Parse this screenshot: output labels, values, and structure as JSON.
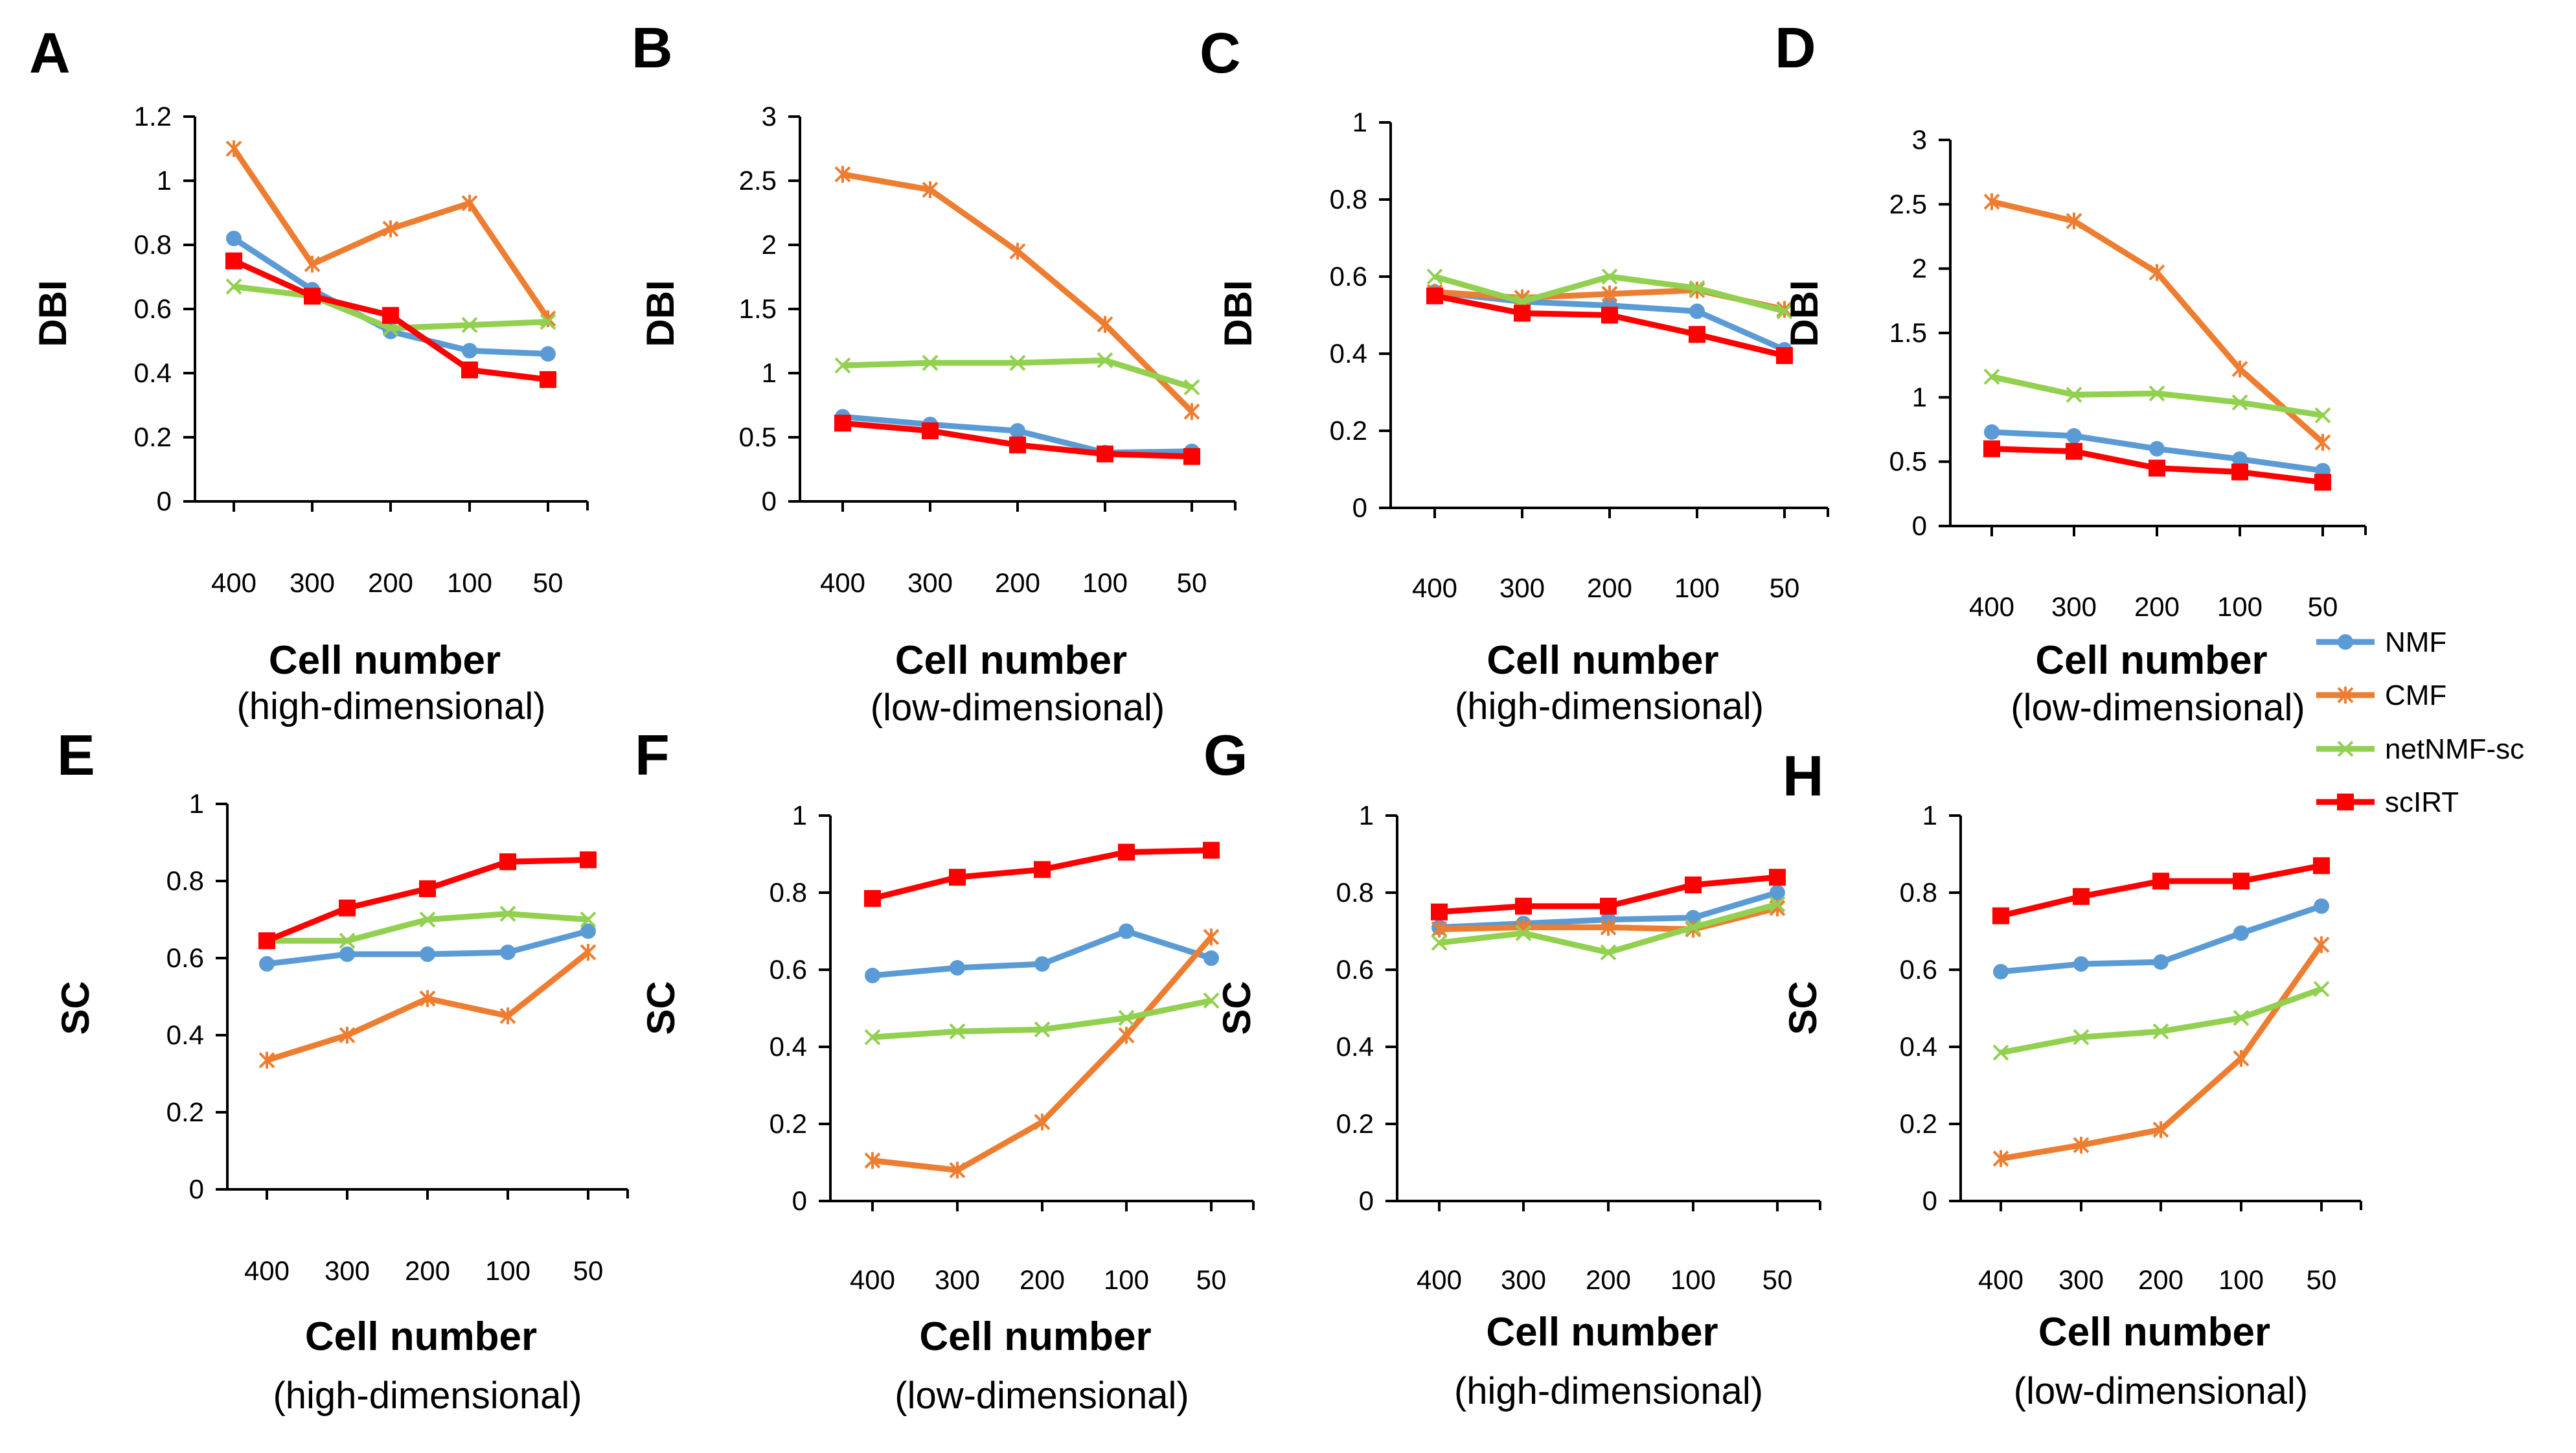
{
  "legend": {
    "placement": "right-middle",
    "entries": [
      {
        "name": "NMF",
        "color": "#5B9BD5",
        "marker": "circle"
      },
      {
        "name": "CMF",
        "color": "#ED7D31",
        "marker": "asterisk"
      },
      {
        "name": "netNMF-sc",
        "color": "#92D050",
        "marker": "x"
      },
      {
        "name": "scIRT",
        "color": "#FF0000",
        "marker": "square"
      }
    ]
  },
  "chart_data": [
    {
      "panel": "A",
      "type": "line",
      "ylabel": "DBI",
      "xlabel": "Cell number",
      "xsublabel": "(high-dimensional)",
      "categories": [
        "400",
        "300",
        "200",
        "100",
        "50"
      ],
      "ylim": [
        0,
        1.2
      ],
      "yticks": [
        "0",
        "0.2",
        "0.4",
        "0.6",
        "0.8",
        "1",
        "1.2"
      ],
      "ytick_values": [
        0,
        0.2,
        0.4,
        0.6,
        0.8,
        1.0,
        1.2
      ],
      "grid": false,
      "series": [
        {
          "name": "NMF",
          "values": [
            0.82,
            0.66,
            0.53,
            0.47,
            0.46
          ]
        },
        {
          "name": "CMF",
          "values": [
            1.1,
            0.74,
            0.85,
            0.93,
            0.57
          ]
        },
        {
          "name": "netNMF-sc",
          "values": [
            0.67,
            0.64,
            0.54,
            0.55,
            0.56
          ]
        },
        {
          "name": "scIRT",
          "values": [
            0.75,
            0.64,
            0.58,
            0.41,
            0.38
          ]
        }
      ]
    },
    {
      "panel": "B",
      "type": "line",
      "ylabel": "DBI",
      "xlabel": "Cell number",
      "xsublabel": "(low-dimensional)",
      "categories": [
        "400",
        "300",
        "200",
        "100",
        "50"
      ],
      "ylim": [
        0,
        3
      ],
      "yticks": [
        "0",
        "0.5",
        "1",
        "1.5",
        "2",
        "2.5",
        "3"
      ],
      "ytick_values": [
        0,
        0.5,
        1,
        1.5,
        2,
        2.5,
        3
      ],
      "grid": false,
      "series": [
        {
          "name": "NMF",
          "values": [
            0.66,
            0.6,
            0.55,
            0.38,
            0.39
          ]
        },
        {
          "name": "CMF",
          "values": [
            2.55,
            2.43,
            1.95,
            1.38,
            0.7
          ]
        },
        {
          "name": "netNMF-sc",
          "values": [
            1.06,
            1.08,
            1.08,
            1.1,
            0.89
          ]
        },
        {
          "name": "scIRT",
          "values": [
            0.61,
            0.55,
            0.44,
            0.37,
            0.35
          ]
        }
      ]
    },
    {
      "panel": "C",
      "type": "line",
      "ylabel": "DBI",
      "xlabel": "Cell number",
      "xsublabel": "(high-dimensional)",
      "categories": [
        "400",
        "300",
        "200",
        "100",
        "50"
      ],
      "ylim": [
        0,
        1
      ],
      "yticks": [
        "0",
        "0.2",
        "0.4",
        "0.6",
        "0.8",
        "1"
      ],
      "ytick_values": [
        0,
        0.2,
        0.4,
        0.6,
        0.8,
        1
      ],
      "grid": false,
      "series": [
        {
          "name": "NMF",
          "values": [
            0.56,
            0.535,
            0.525,
            0.51,
            0.41
          ]
        },
        {
          "name": "CMF",
          "values": [
            0.56,
            0.545,
            0.555,
            0.565,
            0.515
          ]
        },
        {
          "name": "netNMF-sc",
          "values": [
            0.6,
            0.535,
            0.6,
            0.57,
            0.51
          ]
        },
        {
          "name": "scIRT",
          "values": [
            0.55,
            0.505,
            0.5,
            0.45,
            0.395
          ]
        }
      ]
    },
    {
      "panel": "D",
      "type": "line",
      "ylabel": "DBI",
      "xlabel": "Cell number",
      "xsublabel": "(low-dimensional)",
      "categories": [
        "400",
        "300",
        "200",
        "100",
        "50"
      ],
      "ylim": [
        0,
        3
      ],
      "yticks": [
        "0",
        "0.5",
        "1",
        "1.5",
        "2",
        "2.5",
        "3"
      ],
      "ytick_values": [
        0,
        0.5,
        1,
        1.5,
        2,
        2.5,
        3
      ],
      "grid": false,
      "series": [
        {
          "name": "NMF",
          "values": [
            0.73,
            0.7,
            0.6,
            0.52,
            0.43
          ]
        },
        {
          "name": "CMF",
          "values": [
            2.52,
            2.37,
            1.97,
            1.22,
            0.65
          ]
        },
        {
          "name": "netNMF-sc",
          "values": [
            1.16,
            1.02,
            1.03,
            0.96,
            0.86
          ]
        },
        {
          "name": "scIRT",
          "values": [
            0.6,
            0.58,
            0.45,
            0.42,
            0.34
          ]
        }
      ]
    },
    {
      "panel": "E",
      "type": "line",
      "ylabel": "SC",
      "xlabel": "Cell number",
      "xsublabel": "(high-dimensional)",
      "categories": [
        "400",
        "300",
        "200",
        "100",
        "50"
      ],
      "ylim": [
        0,
        1
      ],
      "yticks": [
        "0",
        "0.2",
        "0.4",
        "0.6",
        "0.8",
        "1"
      ],
      "ytick_values": [
        0,
        0.2,
        0.4,
        0.6,
        0.8,
        1
      ],
      "grid": false,
      "series": [
        {
          "name": "NMF",
          "values": [
            0.585,
            0.61,
            0.61,
            0.615,
            0.67
          ]
        },
        {
          "name": "CMF",
          "values": [
            0.335,
            0.4,
            0.495,
            0.45,
            0.615
          ]
        },
        {
          "name": "netNMF-sc",
          "values": [
            0.645,
            0.645,
            0.7,
            0.715,
            0.7
          ]
        },
        {
          "name": "scIRT",
          "values": [
            0.645,
            0.73,
            0.78,
            0.85,
            0.855
          ]
        }
      ]
    },
    {
      "panel": "F",
      "type": "line",
      "ylabel": "SC",
      "xlabel": "Cell number",
      "xsublabel": "(low-dimensional)",
      "categories": [
        "400",
        "300",
        "200",
        "100",
        "50"
      ],
      "ylim": [
        0,
        1
      ],
      "yticks": [
        "0",
        "0.2",
        "0.4",
        "0.6",
        "0.8",
        "1"
      ],
      "ytick_values": [
        0,
        0.2,
        0.4,
        0.6,
        0.8,
        1
      ],
      "grid": false,
      "series": [
        {
          "name": "NMF",
          "values": [
            0.585,
            0.605,
            0.615,
            0.7,
            0.63
          ]
        },
        {
          "name": "CMF",
          "values": [
            0.105,
            0.08,
            0.205,
            0.43,
            0.685
          ]
        },
        {
          "name": "netNMF-sc",
          "values": [
            0.425,
            0.44,
            0.445,
            0.475,
            0.52
          ]
        },
        {
          "name": "scIRT",
          "values": [
            0.785,
            0.84,
            0.86,
            0.905,
            0.91
          ]
        }
      ]
    },
    {
      "panel": "G",
      "type": "line",
      "ylabel": "SC",
      "xlabel": "Cell number",
      "xsublabel": "(high-dimensional)",
      "categories": [
        "400",
        "300",
        "200",
        "100",
        "50"
      ],
      "ylim": [
        0,
        1
      ],
      "yticks": [
        "0",
        "0.2",
        "0.4",
        "0.6",
        "0.8",
        "1"
      ],
      "ytick_values": [
        0,
        0.2,
        0.4,
        0.6,
        0.8,
        1
      ],
      "grid": false,
      "series": [
        {
          "name": "NMF",
          "values": [
            0.71,
            0.72,
            0.73,
            0.735,
            0.8
          ]
        },
        {
          "name": "CMF",
          "values": [
            0.705,
            0.71,
            0.71,
            0.705,
            0.76
          ]
        },
        {
          "name": "netNMF-sc",
          "values": [
            0.67,
            0.695,
            0.645,
            0.71,
            0.77
          ]
        },
        {
          "name": "scIRT",
          "values": [
            0.75,
            0.765,
            0.765,
            0.82,
            0.84
          ]
        }
      ]
    },
    {
      "panel": "H",
      "type": "line",
      "ylabel": "SC",
      "xlabel": "Cell number",
      "xsublabel": "(low-dimensional)",
      "categories": [
        "400",
        "300",
        "200",
        "100",
        "50"
      ],
      "ylim": [
        0,
        1
      ],
      "yticks": [
        "0",
        "0.2",
        "0.4",
        "0.6",
        "0.8",
        "1"
      ],
      "ytick_values": [
        0,
        0.2,
        0.4,
        0.6,
        0.8,
        1
      ],
      "grid": false,
      "series": [
        {
          "name": "NMF",
          "values": [
            0.595,
            0.615,
            0.62,
            0.695,
            0.765
          ]
        },
        {
          "name": "CMF",
          "values": [
            0.11,
            0.145,
            0.185,
            0.37,
            0.665
          ]
        },
        {
          "name": "netNMF-sc",
          "values": [
            0.385,
            0.425,
            0.44,
            0.475,
            0.55
          ]
        },
        {
          "name": "scIRT",
          "values": [
            0.74,
            0.79,
            0.83,
            0.83,
            0.87
          ]
        }
      ]
    }
  ]
}
